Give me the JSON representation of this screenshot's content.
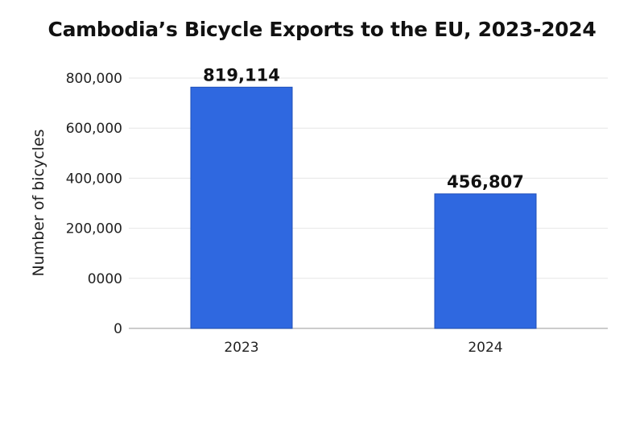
{
  "chart_data": {
    "type": "bar",
    "title": "Cambodia’s Bicycle Exports to the EU, 2023-2024",
    "xlabel": "",
    "ylabel": "Number of bicycles",
    "categories": [
      "2023",
      "2024"
    ],
    "values": [
      819114,
      456807
    ],
    "data_labels": [
      "819,114",
      "456,807"
    ],
    "ytick_labels": [
      "0",
      "0000",
      "200,000",
      "400,000",
      "600,000",
      "800,000"
    ],
    "ylim": [
      0,
      850000
    ],
    "grid": true,
    "legend": "none",
    "bar_color": "#2f68e0",
    "bar_edge_color": "#1f4fb8"
  }
}
